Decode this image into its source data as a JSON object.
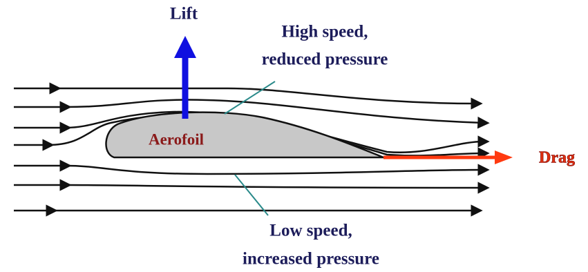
{
  "lift": "Lift",
  "upper_label": {
    "line1": "High speed,",
    "line2": "reduced pressure"
  },
  "aerofoil": "Aerofoil",
  "drag": "Drag",
  "lower_label": {
    "line1": "Low speed,",
    "line2": "increased pressure"
  }
}
